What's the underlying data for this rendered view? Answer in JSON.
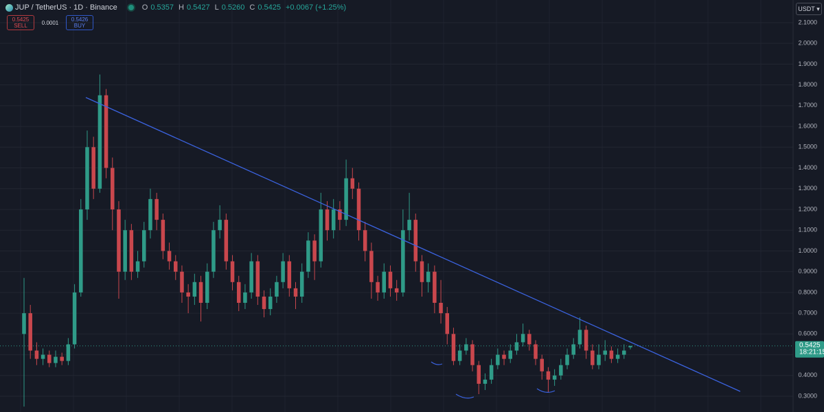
{
  "toolbar": {
    "symbol": "JUP / TetherUS · 1D · Binance",
    "ohlc": [
      {
        "key": "O",
        "value": "0.5357"
      },
      {
        "key": "H",
        "value": "0.5427"
      },
      {
        "key": "L",
        "value": "0.5260"
      },
      {
        "key": "C",
        "value": "0.5425"
      }
    ],
    "change": "+0.0067 (+1.25%)",
    "sell_price": "0.5425",
    "sell_label": "SELL",
    "spread": "0.0001",
    "buy_price": "0.5426",
    "buy_label": "BUY",
    "currency": "USDT",
    "countdown": "18:21:15"
  },
  "chart_data": {
    "type": "candlestick",
    "up_color": "#2f9b88",
    "down_color": "#c9474d",
    "grid": true,
    "ylim": [
      0.224,
      2.209
    ],
    "yticks": [
      {
        "value": 0.3,
        "label": "0.3000"
      },
      {
        "value": 0.4,
        "label": "0.4000"
      },
      {
        "value": 0.5,
        "label": "0.5000"
      },
      {
        "value": 0.6,
        "label": "0.6000"
      },
      {
        "value": 0.7,
        "label": "0.7000"
      },
      {
        "value": 0.8,
        "label": "0.8000"
      },
      {
        "value": 0.9,
        "label": "0.9000"
      },
      {
        "value": 1.0,
        "label": "1.0000"
      },
      {
        "value": 1.1,
        "label": "1.1000"
      },
      {
        "value": 1.2,
        "label": "1.2000"
      },
      {
        "value": 1.3,
        "label": "1.3000"
      },
      {
        "value": 1.4,
        "label": "1.4000"
      },
      {
        "value": 1.5,
        "label": "1.5000"
      },
      {
        "value": 1.6,
        "label": "1.6000"
      },
      {
        "value": 1.7,
        "label": "1.7000"
      },
      {
        "value": 1.8,
        "label": "1.8000"
      },
      {
        "value": 1.9,
        "label": "1.9000"
      },
      {
        "value": 2.0,
        "label": "2.0000"
      },
      {
        "value": 2.1,
        "label": "2.1000"
      }
    ],
    "open": [
      0.6,
      0.7,
      0.52,
      0.48,
      0.5,
      0.46,
      0.49,
      0.47,
      0.55,
      0.8,
      1.2,
      1.5,
      1.3,
      1.75,
      1.4,
      1.2,
      0.9,
      1.1,
      0.9,
      0.95,
      1.1,
      1.25,
      1.15,
      1.0,
      0.95,
      0.9,
      0.8,
      0.78,
      0.85,
      0.75,
      0.9,
      1.1,
      1.15,
      0.95,
      0.85,
      0.75,
      0.8,
      0.95,
      0.78,
      0.72,
      0.78,
      0.85,
      0.95,
      0.82,
      0.78,
      0.9,
      1.05,
      0.95,
      1.2,
      1.1,
      1.2,
      1.15,
      1.35,
      1.3,
      1.1,
      1.0,
      0.85,
      0.8,
      0.9,
      0.82,
      0.8,
      1.1,
      1.15,
      0.95,
      0.85,
      0.9,
      0.75,
      0.7,
      0.6,
      0.47,
      0.52,
      0.55,
      0.45,
      0.36,
      0.38,
      0.45,
      0.5,
      0.48,
      0.52,
      0.56,
      0.6,
      0.55,
      0.48,
      0.42,
      0.38,
      0.4,
      0.45,
      0.5,
      0.55,
      0.62,
      0.52,
      0.45,
      0.5,
      0.52,
      0.48,
      0.5,
      0.5357
    ],
    "high": [
      0.87,
      0.74,
      0.56,
      0.53,
      0.52,
      0.52,
      0.51,
      0.58,
      0.84,
      1.25,
      1.58,
      1.55,
      1.85,
      1.78,
      1.45,
      1.24,
      1.15,
      1.13,
      1.0,
      1.14,
      1.3,
      1.28,
      1.18,
      1.04,
      0.98,
      0.93,
      0.84,
      0.89,
      0.88,
      0.94,
      1.14,
      1.22,
      1.18,
      0.98,
      0.88,
      0.84,
      0.99,
      0.98,
      0.81,
      0.82,
      0.88,
      0.99,
      0.98,
      0.85,
      0.94,
      1.09,
      1.08,
      1.28,
      1.24,
      1.25,
      1.24,
      1.44,
      1.4,
      1.33,
      1.14,
      1.04,
      0.88,
      0.94,
      0.93,
      0.86,
      1.2,
      1.28,
      1.18,
      0.98,
      0.94,
      0.93,
      0.86,
      0.73,
      0.63,
      0.55,
      0.58,
      0.57,
      0.47,
      0.41,
      0.48,
      0.53,
      0.52,
      0.55,
      0.6,
      0.65,
      0.62,
      0.57,
      0.5,
      0.44,
      0.43,
      0.48,
      0.53,
      0.58,
      0.68,
      0.64,
      0.55,
      0.55,
      0.57,
      0.54,
      0.53,
      0.55,
      0.5427
    ],
    "low": [
      0.25,
      0.48,
      0.45,
      0.45,
      0.44,
      0.44,
      0.45,
      0.45,
      0.53,
      0.78,
      1.15,
      1.25,
      1.28,
      1.35,
      1.1,
      0.77,
      0.86,
      0.86,
      0.87,
      0.92,
      1.06,
      1.1,
      0.96,
      0.91,
      0.86,
      0.75,
      0.7,
      0.74,
      0.66,
      0.72,
      0.87,
      1.06,
      0.91,
      0.81,
      0.71,
      0.72,
      0.77,
      0.74,
      0.68,
      0.69,
      0.75,
      0.82,
      0.78,
      0.72,
      0.75,
      0.87,
      0.86,
      0.92,
      1.05,
      1.06,
      1.1,
      1.12,
      1.25,
      1.05,
      0.95,
      0.77,
      0.76,
      0.77,
      0.78,
      0.76,
      0.78,
      1.05,
      0.9,
      0.78,
      0.8,
      0.7,
      0.65,
      0.55,
      0.45,
      0.45,
      0.5,
      0.42,
      0.31,
      0.33,
      0.36,
      0.43,
      0.45,
      0.46,
      0.5,
      0.54,
      0.52,
      0.45,
      0.38,
      0.32,
      0.35,
      0.38,
      0.43,
      0.48,
      0.53,
      0.48,
      0.43,
      0.43,
      0.47,
      0.46,
      0.46,
      0.48,
      0.526
    ],
    "close": [
      0.7,
      0.52,
      0.48,
      0.5,
      0.46,
      0.49,
      0.47,
      0.55,
      0.8,
      1.2,
      1.5,
      1.3,
      1.75,
      1.4,
      1.2,
      0.9,
      1.1,
      0.9,
      0.95,
      1.1,
      1.25,
      1.15,
      1.0,
      0.95,
      0.9,
      0.8,
      0.78,
      0.85,
      0.75,
      0.9,
      1.1,
      1.15,
      0.95,
      0.85,
      0.75,
      0.8,
      0.95,
      0.78,
      0.72,
      0.78,
      0.85,
      0.95,
      0.82,
      0.78,
      0.9,
      1.05,
      0.95,
      1.2,
      1.1,
      1.2,
      1.15,
      1.35,
      1.3,
      1.1,
      1.0,
      0.85,
      0.8,
      0.9,
      0.82,
      0.8,
      1.1,
      1.15,
      0.95,
      0.85,
      0.9,
      0.75,
      0.7,
      0.6,
      0.47,
      0.52,
      0.55,
      0.45,
      0.36,
      0.38,
      0.45,
      0.5,
      0.48,
      0.52,
      0.56,
      0.6,
      0.55,
      0.48,
      0.42,
      0.38,
      0.4,
      0.45,
      0.5,
      0.55,
      0.62,
      0.52,
      0.45,
      0.5,
      0.52,
      0.48,
      0.5,
      0.52,
      0.5425
    ]
  }
}
